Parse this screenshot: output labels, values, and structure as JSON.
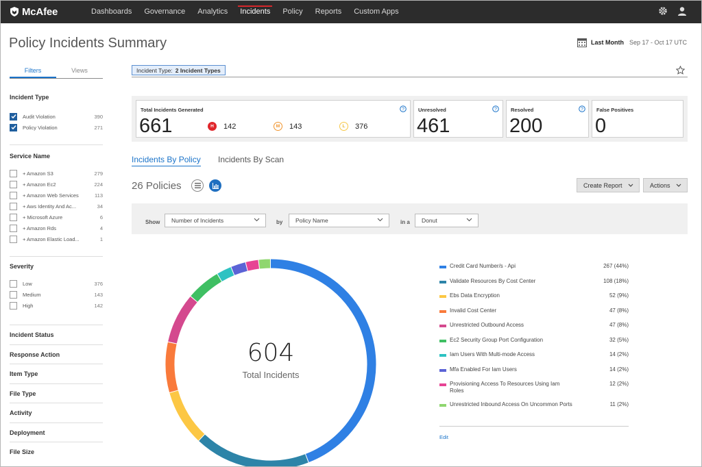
{
  "brand": {
    "name": "McAfee"
  },
  "nav": {
    "items": [
      {
        "label": "Dashboards"
      },
      {
        "label": "Governance"
      },
      {
        "label": "Analytics"
      },
      {
        "label": "Incidents"
      },
      {
        "label": "Policy"
      },
      {
        "label": "Reports"
      },
      {
        "label": "Custom Apps"
      }
    ],
    "active": "Incidents"
  },
  "header": {
    "title": "Policy Incidents Summary",
    "date_label": "Last Month",
    "date_range": "Sep 17 - Oct 17 UTC"
  },
  "sidebar": {
    "tabs": [
      {
        "label": "Filters"
      },
      {
        "label": "Views"
      }
    ],
    "incident_type": {
      "heading": "Incident Type",
      "items": [
        {
          "label": "Audit Violation",
          "count": "390",
          "checked": true
        },
        {
          "label": "Policy Violation",
          "count": "271",
          "checked": true
        }
      ]
    },
    "service_name": {
      "heading": "Service Name",
      "items": [
        {
          "label": "+ Amazon S3",
          "count": "279"
        },
        {
          "label": "+ Amazon Ec2",
          "count": "224"
        },
        {
          "label": "+ Amazon Web Services",
          "count": "113"
        },
        {
          "label": "+ Aws Identity And Ac...",
          "count": "34"
        },
        {
          "label": "+ Microsoft Azure",
          "count": "6"
        },
        {
          "label": "+ Amazon Rds",
          "count": "4"
        },
        {
          "label": "+ Amazon Elastic Load...",
          "count": "1"
        }
      ]
    },
    "severity": {
      "heading": "Severity",
      "items": [
        {
          "label": "Low",
          "count": "376"
        },
        {
          "label": "Medium",
          "count": "143"
        },
        {
          "label": "High",
          "count": "142"
        }
      ]
    },
    "collapsed": [
      {
        "label": "Incident Status"
      },
      {
        "label": "Response Action"
      },
      {
        "label": "Item Type"
      },
      {
        "label": "File Type"
      },
      {
        "label": "Activity"
      },
      {
        "label": "Deployment"
      },
      {
        "label": "File Size"
      }
    ]
  },
  "filter_bar": {
    "chip_label": "Incident Type:",
    "chip_value": "2 Incident Types"
  },
  "stats": {
    "total": {
      "label": "Total Incidents Generated",
      "value": "661"
    },
    "high": {
      "badge": "H",
      "value": "142",
      "color": "#e0262b"
    },
    "medium": {
      "badge": "M",
      "value": "143",
      "color": "#f0932b"
    },
    "low": {
      "badge": "L",
      "value": "376",
      "color": "#f7c744"
    },
    "unresolved": {
      "label": "Unresolved",
      "value": "461"
    },
    "resolved": {
      "label": "Resolved",
      "value": "200"
    },
    "false_positives": {
      "label": "False Positives",
      "value": "0"
    }
  },
  "view_tabs": [
    {
      "label": "Incidents By Policy"
    },
    {
      "label": "Incidents By Scan"
    }
  ],
  "policies_count": "26 Policies",
  "actions": {
    "create_report": "Create Report",
    "actions": "Actions"
  },
  "show_bar": {
    "show_label": "Show",
    "show_value": "Number of Incidents",
    "by_label": "by",
    "by_value": "Policy Name",
    "in_label": "in a",
    "in_value": "Donut"
  },
  "donut": {
    "total": "604",
    "label": "Total Incidents"
  },
  "legend": {
    "items": [
      {
        "name": "Credit Card Number/s - Api",
        "value": "267 (44%)",
        "count": 267,
        "color": "#2f80e4"
      },
      {
        "name": "Validate Resources By Cost Center",
        "value": "108 (18%)",
        "count": 108,
        "color": "#2d84a8"
      },
      {
        "name": "Ebs Data Encryption",
        "value": "52 (9%)",
        "count": 52,
        "color": "#fcc744"
      },
      {
        "name": "Invalid Cost Center",
        "value": "47 (8%)",
        "count": 47,
        "color": "#f97a3b"
      },
      {
        "name": "Unrestricted Outbound Access",
        "value": "47 (8%)",
        "count": 47,
        "color": "#d4498e"
      },
      {
        "name": "Ec2 Security Group Port Configuration",
        "value": "32 (5%)",
        "count": 32,
        "color": "#3fbf63"
      },
      {
        "name": "Iam Users With Multi-mode Access",
        "value": "14 (2%)",
        "count": 14,
        "color": "#2dc2c2"
      },
      {
        "name": "Mfa Enabled For Iam Users",
        "value": "14 (2%)",
        "count": 14,
        "color": "#5b63d6"
      },
      {
        "name": "Provisioning Access To Resources Using Iam Roles",
        "value": "12 (2%)",
        "count": 12,
        "color": "#e74394"
      },
      {
        "name": "Unrestricted Inbound Access On Uncommon Ports",
        "value": "11 (2%)",
        "count": 11,
        "color": "#8fd66f"
      }
    ],
    "edit_label": "Edit"
  }
}
